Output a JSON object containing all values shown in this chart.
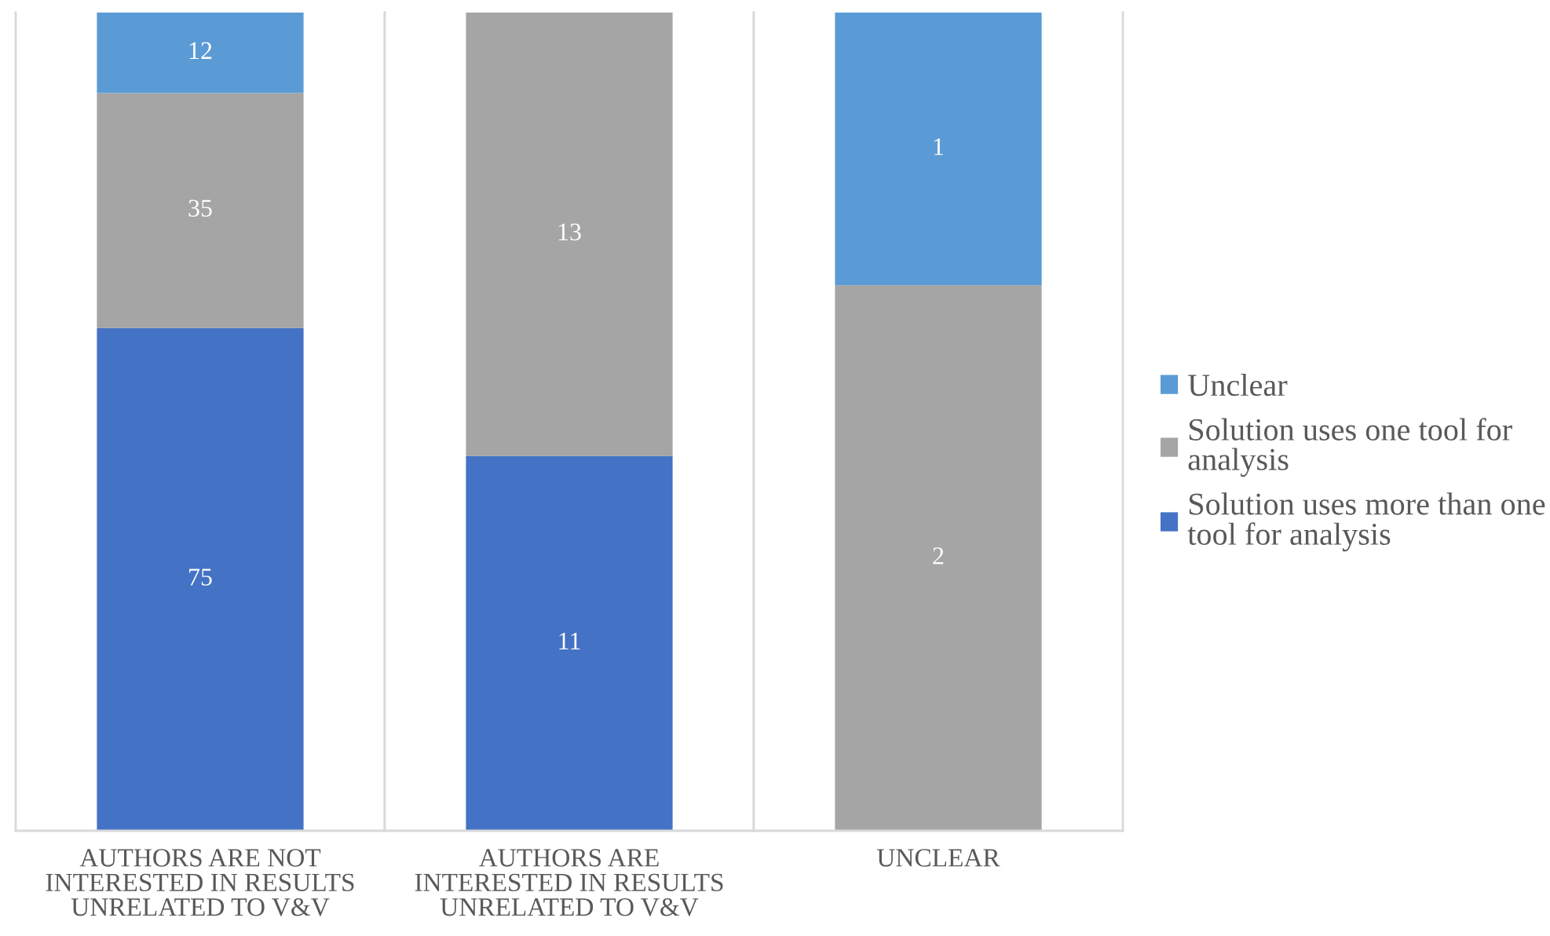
{
  "chart_data": [
    {
      "type": "bar",
      "stacked": true,
      "data_labels": true,
      "tick_labels": "x",
      "categories": [
        "AUTHORS ARE NOT INTERESTED IN RESULTS UNRELATED TO V&V"
      ],
      "series": [
        {
          "color": "#4472c4",
          "values": [
            75
          ]
        },
        {
          "color": "#a5a5a5",
          "values": [
            35
          ]
        },
        {
          "color": "#5b9bd5",
          "values": [
            12
          ]
        }
      ]
    },
    {
      "type": "bar",
      "stacked": true,
      "data_labels": true,
      "tick_labels": "x",
      "categories": [
        "AUTHORS ARE INTERESTED IN RESULTS UNRELATED TO V&V"
      ],
      "series": [
        {
          "color": "#4472c4",
          "values": [
            11
          ]
        },
        {
          "color": "#a5a5a5",
          "values": [
            13
          ]
        }
      ]
    },
    {
      "type": "bar",
      "stacked": true,
      "data_labels": true,
      "tick_labels": "x",
      "legend": "right",
      "categories": [
        "UNCLEAR"
      ],
      "series": [
        {
          "name": "Solution uses more than one tool for analysis",
          "color": "#4472c4",
          "values": [
            null
          ]
        },
        {
          "name": "Solution uses one tool for analysis",
          "color": "#a5a5a5",
          "values": [
            2
          ]
        },
        {
          "name": "Unclear",
          "color": "#5b9bd5",
          "values": [
            1
          ]
        }
      ]
    }
  ]
}
